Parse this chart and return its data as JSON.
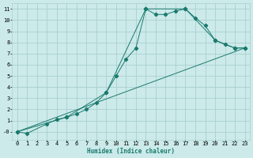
{
  "xlabel": "Humidex (Indice chaleur)",
  "bg_color": "#cceaea",
  "grid_color": "#aacfcf",
  "line_color": "#1a7a6e",
  "xlim": [
    -0.5,
    23.5
  ],
  "ylim": [
    -0.7,
    11.5
  ],
  "xticks": [
    0,
    1,
    2,
    3,
    4,
    5,
    6,
    7,
    8,
    9,
    10,
    11,
    12,
    13,
    14,
    15,
    16,
    17,
    18,
    19,
    20,
    21,
    22,
    23
  ],
  "yticks": [
    0,
    1,
    2,
    3,
    4,
    5,
    6,
    7,
    8,
    9,
    10,
    11
  ],
  "ytick_labels": [
    "-0",
    "1",
    "2",
    "3",
    "4",
    "5",
    "6",
    "7",
    "8",
    "9",
    "10",
    "11"
  ],
  "line1_x": [
    0,
    1,
    3,
    4,
    5,
    6,
    7,
    8,
    9,
    10,
    11,
    12,
    13,
    14,
    15,
    16,
    17,
    18,
    19,
    20,
    21,
    22,
    23
  ],
  "line1_y": [
    0.0,
    -0.15,
    0.7,
    1.1,
    1.3,
    1.6,
    2.0,
    2.6,
    3.5,
    5.0,
    6.5,
    7.5,
    11.0,
    10.5,
    10.5,
    10.8,
    11.0,
    10.2,
    9.5,
    8.2,
    7.8,
    7.5,
    7.5
  ],
  "line2_x": [
    0,
    5,
    9,
    13,
    17,
    20,
    22,
    23
  ],
  "line2_y": [
    0.0,
    1.3,
    3.5,
    11.0,
    11.0,
    8.2,
    7.5,
    7.5
  ],
  "line3_x": [
    0,
    23
  ],
  "line3_y": [
    0.0,
    7.5
  ],
  "marker": "D",
  "marker_size": 2.2,
  "line_width": 0.7,
  "tick_fontsize": 5.0,
  "xlabel_fontsize": 5.5
}
